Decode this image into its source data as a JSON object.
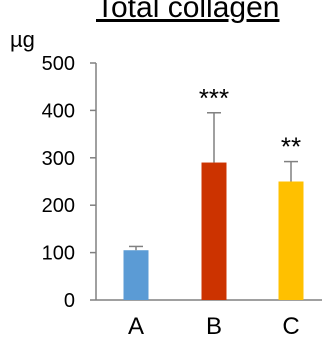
{
  "chart_data": {
    "type": "bar",
    "title": "Total collagen",
    "ylabel": "µg",
    "xlabel": "",
    "ylim": [
      0,
      500
    ],
    "yticks": [
      0,
      100,
      200,
      300,
      400,
      500
    ],
    "categories": [
      "A",
      "B",
      "C"
    ],
    "values": [
      105,
      290,
      250
    ],
    "errors": [
      8,
      105,
      42
    ],
    "colors": [
      "#5B9BD5",
      "#CC3300",
      "#FFC000"
    ],
    "significance": [
      "",
      "***",
      "**"
    ],
    "grid": false,
    "legend": "none"
  }
}
